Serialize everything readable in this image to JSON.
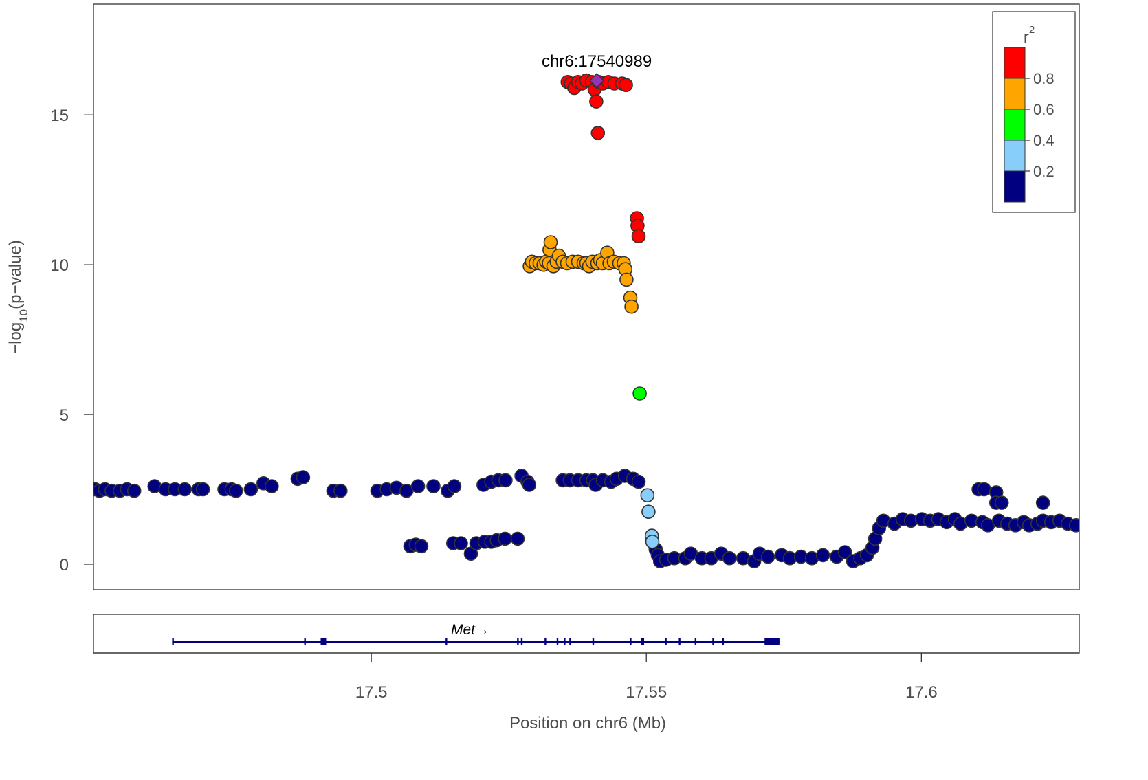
{
  "chart_data": {
    "type": "scatter",
    "title": "",
    "xlabel": "Position on chr6 (Mb)",
    "ylabel_main": "−log",
    "ylabel_sub": "10",
    "ylabel_tail": "(p−value)",
    "xlim": [
      17.4495,
      17.6287
    ],
    "ylim": [
      -0.85,
      18.7
    ],
    "x_ticks": [
      17.5,
      17.55,
      17.6
    ],
    "x_tick_labels": [
      "17.5",
      "17.55",
      "17.6"
    ],
    "y_ticks": [
      0,
      5,
      10,
      15
    ],
    "y_tick_labels": [
      "0",
      "5",
      "10",
      "15"
    ],
    "grid": false,
    "lead_snp": {
      "label": "chr6:17540989",
      "x": 17.540989,
      "y": 16.15,
      "color": "#9632B8"
    },
    "legend": {
      "title": "r",
      "title_sup": "2",
      "placement": "top-right",
      "bins": [
        {
          "color": "#FF0000"
        },
        {
          "color": "#FFA500"
        },
        {
          "color": "#00FF00"
        },
        {
          "color": "#87CEFA"
        },
        {
          "color": "#000080"
        }
      ],
      "tick_labels": [
        "0.8",
        "0.6",
        "0.4",
        "0.2"
      ]
    },
    "series": [
      {
        "r2_bin": "0.8-1.0",
        "color": "#FF0000",
        "points": [
          [
            17.5357,
            16.1
          ],
          [
            17.5363,
            16.05
          ],
          [
            17.5369,
            15.9
          ],
          [
            17.5376,
            16.1
          ],
          [
            17.5383,
            16.05
          ],
          [
            17.5391,
            16.15
          ],
          [
            17.5401,
            16.1
          ],
          [
            17.5406,
            15.85
          ],
          [
            17.5409,
            15.45
          ],
          [
            17.5412,
            14.4
          ],
          [
            17.5414,
            16.1
          ],
          [
            17.5421,
            16.05
          ],
          [
            17.5431,
            16.1
          ],
          [
            17.5442,
            16.05
          ],
          [
            17.5456,
            16.05
          ],
          [
            17.5463,
            16.0
          ],
          [
            17.5483,
            11.55
          ],
          [
            17.5484,
            11.3
          ],
          [
            17.5486,
            10.95
          ]
        ]
      },
      {
        "r2_bin": "0.6-0.8",
        "color": "#FFA500",
        "points": [
          [
            17.5288,
            9.95
          ],
          [
            17.5292,
            10.1
          ],
          [
            17.5299,
            10.05
          ],
          [
            17.5306,
            10.05
          ],
          [
            17.5313,
            10.0
          ],
          [
            17.5318,
            10.1
          ],
          [
            17.5323,
            10.05
          ],
          [
            17.5324,
            10.5
          ],
          [
            17.5326,
            10.75
          ],
          [
            17.5331,
            9.95
          ],
          [
            17.5337,
            10.1
          ],
          [
            17.5341,
            10.3
          ],
          [
            17.5348,
            10.1
          ],
          [
            17.5356,
            10.05
          ],
          [
            17.5366,
            10.1
          ],
          [
            17.5376,
            10.1
          ],
          [
            17.5386,
            10.05
          ],
          [
            17.5391,
            10.05
          ],
          [
            17.5396,
            9.95
          ],
          [
            17.5402,
            10.1
          ],
          [
            17.5411,
            10.05
          ],
          [
            17.5416,
            10.15
          ],
          [
            17.5421,
            10.05
          ],
          [
            17.5429,
            10.4
          ],
          [
            17.5433,
            10.05
          ],
          [
            17.5441,
            10.1
          ],
          [
            17.5451,
            10.05
          ],
          [
            17.5459,
            10.05
          ],
          [
            17.5462,
            9.85
          ],
          [
            17.5464,
            9.5
          ],
          [
            17.5471,
            8.9
          ],
          [
            17.5473,
            8.6
          ]
        ]
      },
      {
        "r2_bin": "0.4-0.6",
        "color": "#00FF00",
        "points": [
          [
            17.5488,
            5.7
          ]
        ]
      },
      {
        "r2_bin": "0.2-0.4",
        "color": "#87CEFA",
        "points": [
          [
            17.5502,
            2.3
          ],
          [
            17.5504,
            1.75
          ],
          [
            17.551,
            0.95
          ],
          [
            17.5511,
            0.75
          ]
        ]
      },
      {
        "r2_bin": "0.0-0.2",
        "color": "#000080",
        "points": [
          [
            17.4498,
            2.5
          ],
          [
            17.4506,
            2.45
          ],
          [
            17.4516,
            2.5
          ],
          [
            17.4528,
            2.45
          ],
          [
            17.4543,
            2.45
          ],
          [
            17.4556,
            2.5
          ],
          [
            17.4569,
            2.45
          ],
          [
            17.4606,
            2.6
          ],
          [
            17.4626,
            2.5
          ],
          [
            17.4643,
            2.5
          ],
          [
            17.4661,
            2.5
          ],
          [
            17.4686,
            2.5
          ],
          [
            17.4694,
            2.5
          ],
          [
            17.4733,
            2.5
          ],
          [
            17.4746,
            2.5
          ],
          [
            17.4754,
            2.45
          ],
          [
            17.4781,
            2.5
          ],
          [
            17.4804,
            2.7
          ],
          [
            17.4819,
            2.6
          ],
          [
            17.4866,
            2.85
          ],
          [
            17.4876,
            2.9
          ],
          [
            17.4931,
            2.45
          ],
          [
            17.4944,
            2.45
          ],
          [
            17.5011,
            2.45
          ],
          [
            17.5028,
            2.5
          ],
          [
            17.5046,
            2.55
          ],
          [
            17.5064,
            2.45
          ],
          [
            17.5085,
            2.6
          ],
          [
            17.5113,
            2.6
          ],
          [
            17.5139,
            2.45
          ],
          [
            17.5151,
            2.6
          ],
          [
            17.5204,
            2.65
          ],
          [
            17.5218,
            2.75
          ],
          [
            17.5231,
            2.8
          ],
          [
            17.5244,
            2.8
          ],
          [
            17.5273,
            2.95
          ],
          [
            17.5284,
            2.75
          ],
          [
            17.5287,
            2.65
          ],
          [
            17.5071,
            0.6
          ],
          [
            17.5081,
            0.65
          ],
          [
            17.5091,
            0.6
          ],
          [
            17.5149,
            0.7
          ],
          [
            17.5163,
            0.7
          ],
          [
            17.5181,
            0.35
          ],
          [
            17.5191,
            0.7
          ],
          [
            17.5206,
            0.75
          ],
          [
            17.5218,
            0.75
          ],
          [
            17.5228,
            0.8
          ],
          [
            17.5243,
            0.85
          ],
          [
            17.5266,
            0.85
          ],
          [
            17.5348,
            2.8
          ],
          [
            17.5361,
            2.8
          ],
          [
            17.5376,
            2.8
          ],
          [
            17.5391,
            2.8
          ],
          [
            17.5403,
            2.8
          ],
          [
            17.5408,
            2.65
          ],
          [
            17.5421,
            2.8
          ],
          [
            17.5436,
            2.75
          ],
          [
            17.5446,
            2.85
          ],
          [
            17.5461,
            2.95
          ],
          [
            17.5476,
            2.85
          ],
          [
            17.5486,
            2.75
          ],
          [
            17.5517,
            0.5
          ],
          [
            17.5521,
            0.3
          ],
          [
            17.5525,
            0.1
          ],
          [
            17.5536,
            0.15
          ],
          [
            17.5551,
            0.2
          ],
          [
            17.5571,
            0.2
          ],
          [
            17.5581,
            0.35
          ],
          [
            17.5601,
            0.2
          ],
          [
            17.5618,
            0.2
          ],
          [
            17.5636,
            0.35
          ],
          [
            17.5651,
            0.2
          ],
          [
            17.5676,
            0.2
          ],
          [
            17.5696,
            0.1
          ],
          [
            17.5706,
            0.35
          ],
          [
            17.5721,
            0.25
          ],
          [
            17.5746,
            0.3
          ],
          [
            17.5761,
            0.2
          ],
          [
            17.5781,
            0.25
          ],
          [
            17.5801,
            0.2
          ],
          [
            17.5821,
            0.3
          ],
          [
            17.5846,
            0.25
          ],
          [
            17.5861,
            0.4
          ],
          [
            17.5876,
            0.1
          ],
          [
            17.5889,
            0.2
          ],
          [
            17.5901,
            0.3
          ],
          [
            17.5911,
            0.55
          ],
          [
            17.5916,
            0.85
          ],
          [
            17.5923,
            1.2
          ],
          [
            17.5931,
            1.45
          ],
          [
            17.5951,
            1.35
          ],
          [
            17.5966,
            1.5
          ],
          [
            17.5981,
            1.45
          ],
          [
            17.6001,
            1.5
          ],
          [
            17.6016,
            1.45
          ],
          [
            17.6031,
            1.5
          ],
          [
            17.6046,
            1.4
          ],
          [
            17.6061,
            1.5
          ],
          [
            17.6071,
            1.35
          ],
          [
            17.6091,
            1.45
          ],
          [
            17.6111,
            1.4
          ],
          [
            17.6121,
            1.3
          ],
          [
            17.6141,
            1.45
          ],
          [
            17.6156,
            1.35
          ],
          [
            17.6171,
            1.3
          ],
          [
            17.6186,
            1.4
          ],
          [
            17.6196,
            1.3
          ],
          [
            17.6211,
            1.35
          ],
          [
            17.6221,
            1.45
          ],
          [
            17.6236,
            1.4
          ],
          [
            17.6251,
            1.45
          ],
          [
            17.6266,
            1.35
          ],
          [
            17.6281,
            1.3
          ],
          [
            17.6104,
            2.5
          ],
          [
            17.6114,
            2.5
          ],
          [
            17.6136,
            2.4
          ],
          [
            17.6136,
            2.05
          ],
          [
            17.6146,
            2.05
          ],
          [
            17.6221,
            2.05
          ]
        ]
      }
    ],
    "gene_track": {
      "gene": "Met",
      "arrow": "→",
      "start": 17.4638,
      "end": 17.5742,
      "exons": [
        [
          17.4638,
          17.464
        ],
        [
          17.4878,
          17.488
        ],
        [
          17.4908,
          17.4918
        ],
        [
          17.5135,
          17.5137
        ],
        [
          17.5265,
          17.5267
        ],
        [
          17.5272,
          17.5274
        ],
        [
          17.5315,
          17.5317
        ],
        [
          17.5337,
          17.534
        ],
        [
          17.535,
          17.5352
        ],
        [
          17.536,
          17.5362
        ],
        [
          17.5402,
          17.5404
        ],
        [
          17.547,
          17.5472
        ],
        [
          17.549,
          17.5496
        ],
        [
          17.5534,
          17.5536
        ],
        [
          17.5559,
          17.5561
        ],
        [
          17.5588,
          17.559
        ],
        [
          17.562,
          17.5622
        ],
        [
          17.5638,
          17.564
        ],
        [
          17.5715,
          17.5742
        ]
      ]
    }
  }
}
